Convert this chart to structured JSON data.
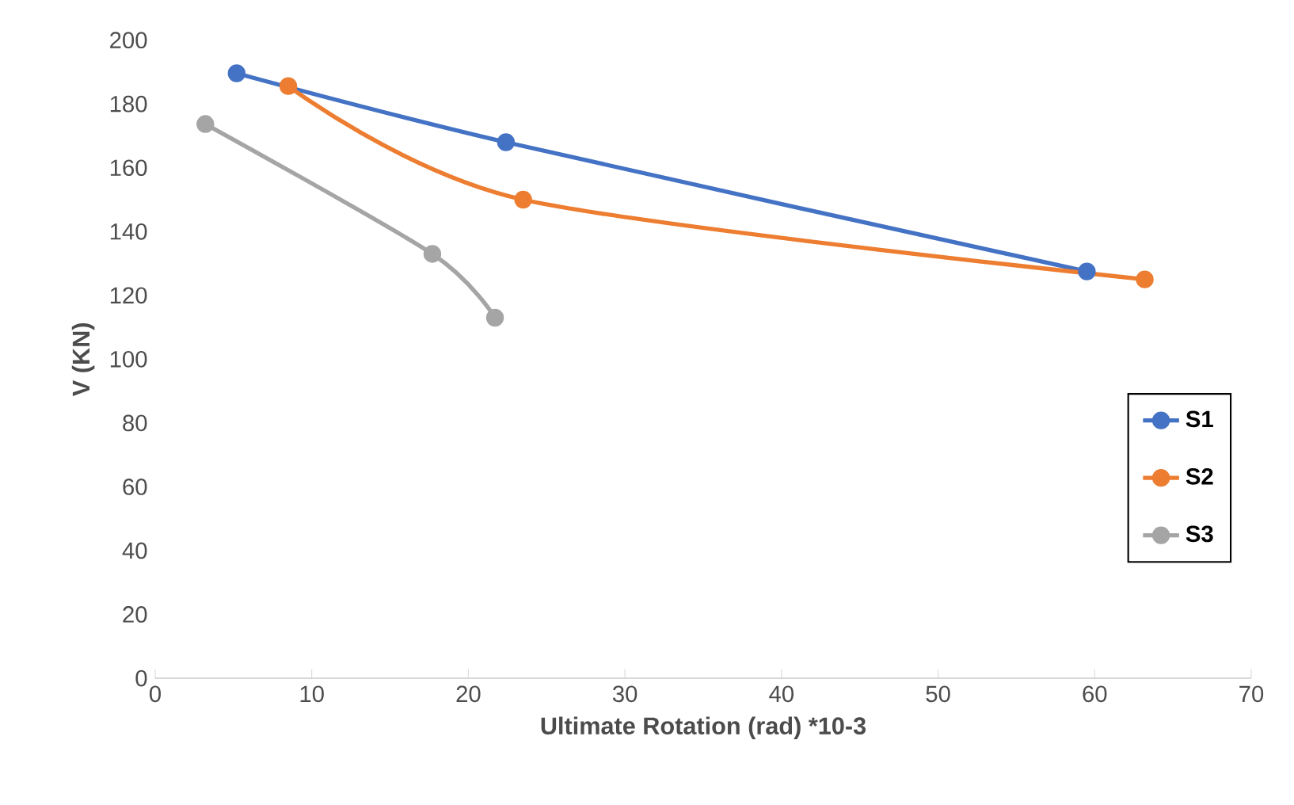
{
  "chart_data": {
    "type": "line",
    "xlabel": "Ultimate Rotation (rad) *10-3",
    "ylabel": "V (KN)",
    "xlim": [
      0,
      70
    ],
    "xticks": [
      0,
      10,
      20,
      30,
      40,
      50,
      60,
      70
    ],
    "ylim": [
      0,
      200
    ],
    "yticks": [
      0,
      20,
      40,
      60,
      80,
      100,
      120,
      140,
      160,
      180,
      200
    ],
    "grid": false,
    "legend": "right",
    "marker": "circle",
    "line_style": "solid",
    "series": [
      {
        "name": "S1",
        "color": "#4472c4",
        "x": [
          5.2,
          22.4,
          59.5
        ],
        "values": [
          189.6,
          168,
          127.5
        ]
      },
      {
        "name": "S2",
        "color": "#ed7d31",
        "x": [
          8.5,
          23.5,
          63.2
        ],
        "values": [
          185.6,
          150,
          125
        ]
      },
      {
        "name": "S3",
        "color": "#a5a5a5",
        "x": [
          3.2,
          17.7,
          21.7
        ],
        "values": [
          173.7,
          133,
          113
        ]
      }
    ]
  }
}
